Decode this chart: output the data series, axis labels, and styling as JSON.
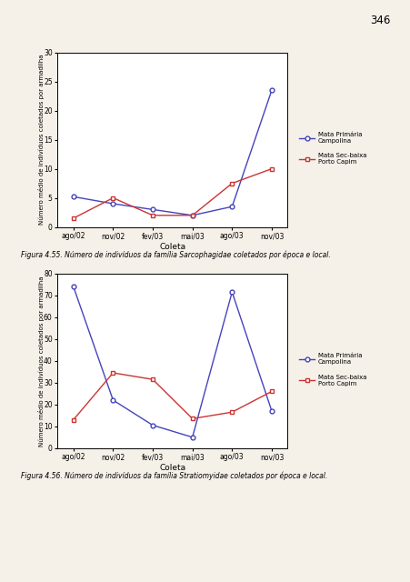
{
  "background_color": "#f5f0e8",
  "plot_bg": "#ffffff",
  "page_number": "346",
  "x_labels": [
    "ago/02",
    "nov/02",
    "fev/03",
    "mai/03",
    "ago/03",
    "nov/03"
  ],
  "x_label": "Coleta",
  "y_label": "Número médio de indivíduos coletados por armadilha",
  "legend_line1": "Mata Primária\nCampolina",
  "legend_line2": "Mata Sec-baixa\nPorto Capim",
  "blue_color": "#4444bb",
  "red_color": "#cc3333",
  "chart1": {
    "caption": "Figura 4.55. Número de indivíduos da família Sarcophagidae coletados por época e local.",
    "ylim": [
      0,
      30
    ],
    "yticks": [
      0,
      5,
      10,
      15,
      20,
      25,
      30
    ],
    "blue_data": [
      5.2,
      4.0,
      3.0,
      2.0,
      3.5,
      23.5
    ],
    "red_data": [
      1.5,
      5.0,
      2.0,
      2.0,
      7.5,
      10.0
    ]
  },
  "chart2": {
    "caption": "Figura 4.56. Número de indivíduos da família Stratiomyidae coletados por época e local.",
    "ylim": [
      0,
      80
    ],
    "yticks": [
      0,
      10,
      20,
      30,
      40,
      50,
      60,
      70,
      80
    ],
    "blue_data": [
      74.0,
      22.0,
      10.5,
      5.0,
      71.5,
      17.0
    ],
    "red_data": [
      13.0,
      34.5,
      31.5,
      13.5,
      16.5,
      26.0
    ]
  }
}
